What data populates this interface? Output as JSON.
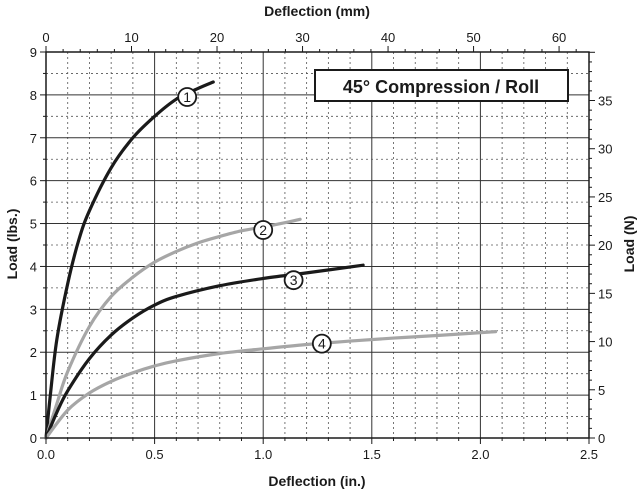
{
  "chart_data": {
    "type": "line",
    "title": "45° Compression / Roll",
    "xlabel": "Deflection (in.)",
    "ylabel": "Load (lbs.)",
    "x2label": "Deflection (mm)",
    "y2label": "Load (N)",
    "xlim": [
      0,
      2.5
    ],
    "ylim": [
      0,
      9
    ],
    "x2lim": [
      0,
      63.5
    ],
    "y2lim": [
      0,
      40.03
    ],
    "x_ticks": [
      "0.0",
      "0.5",
      "1.0",
      "1.5",
      "2.0",
      "2.5"
    ],
    "y_ticks": [
      "0",
      "1",
      "2",
      "3",
      "4",
      "5",
      "6",
      "7",
      "8",
      "9"
    ],
    "x2_ticks": [
      "0",
      "10",
      "20",
      "30",
      "40",
      "50",
      "60"
    ],
    "y2_ticks": [
      "0",
      "5",
      "10",
      "15",
      "20",
      "25",
      "30",
      "35"
    ],
    "grid": true,
    "series": [
      {
        "name": "1",
        "color": "#1a1a1a",
        "label_at": [
          0.65,
          7.95
        ],
        "x": [
          0,
          0.02,
          0.05,
          0.1,
          0.15,
          0.2,
          0.3,
          0.4,
          0.5,
          0.6,
          0.7,
          0.77
        ],
        "y": [
          0,
          1.0,
          2.3,
          3.6,
          4.6,
          5.3,
          6.3,
          7.0,
          7.5,
          7.9,
          8.15,
          8.3
        ]
      },
      {
        "name": "2",
        "color": "#a6a6a6",
        "label_at": [
          1.0,
          4.85
        ],
        "x": [
          0,
          0.05,
          0.1,
          0.2,
          0.3,
          0.4,
          0.5,
          0.6,
          0.7,
          0.8,
          0.9,
          1.0,
          1.1,
          1.17
        ],
        "y": [
          0,
          0.8,
          1.55,
          2.6,
          3.3,
          3.75,
          4.1,
          4.35,
          4.55,
          4.7,
          4.83,
          4.92,
          5.02,
          5.1
        ]
      },
      {
        "name": "3",
        "color": "#1a1a1a",
        "label_at": [
          1.14,
          3.68
        ],
        "x": [
          0,
          0.05,
          0.1,
          0.2,
          0.3,
          0.4,
          0.5,
          0.6,
          0.8,
          1.0,
          1.2,
          1.46
        ],
        "y": [
          0,
          0.6,
          1.1,
          1.85,
          2.4,
          2.8,
          3.1,
          3.3,
          3.55,
          3.72,
          3.85,
          4.03
        ]
      },
      {
        "name": "4",
        "color": "#a6a6a6",
        "label_at": [
          1.27,
          2.2
        ],
        "x": [
          0,
          0.1,
          0.2,
          0.3,
          0.4,
          0.5,
          0.6,
          0.8,
          1.0,
          1.2,
          1.4,
          1.6,
          1.8,
          2.07
        ],
        "y": [
          0,
          0.65,
          1.05,
          1.32,
          1.52,
          1.68,
          1.8,
          1.97,
          2.08,
          2.18,
          2.26,
          2.33,
          2.39,
          2.48
        ]
      }
    ]
  }
}
